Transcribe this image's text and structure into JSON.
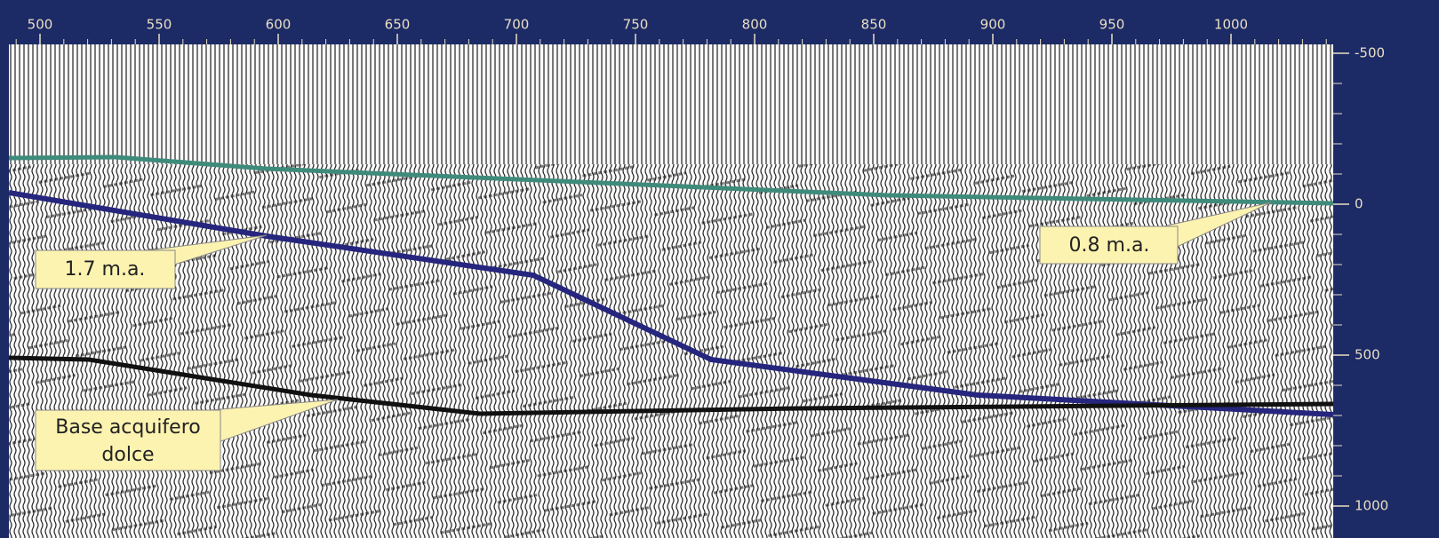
{
  "top_axis": {
    "ticks": [
      500,
      550,
      600,
      650,
      700,
      750,
      800,
      850,
      900,
      950,
      1000
    ]
  },
  "right_axis": {
    "ticks": [
      -500,
      0,
      500,
      1000
    ]
  },
  "callouts": [
    {
      "lines": [
        "1.7 m.a."
      ]
    },
    {
      "lines": [
        "0.8 m.a."
      ]
    },
    {
      "lines": [
        "Base acquifero",
        "dolce"
      ]
    }
  ]
}
